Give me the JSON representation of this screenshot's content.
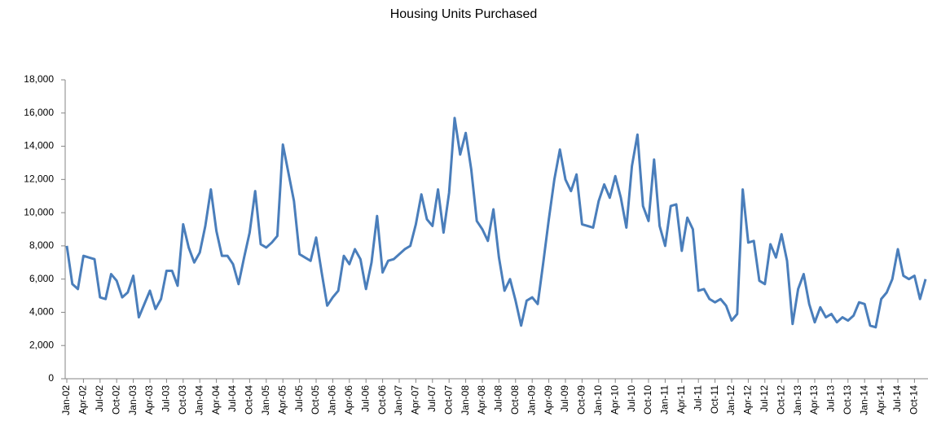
{
  "chart_data": {
    "type": "line",
    "title": "Housing Units Purchased",
    "categories": [
      "Jan-02",
      null,
      null,
      "Apr-02",
      null,
      null,
      "Jul-02",
      null,
      null,
      "Oct-02",
      null,
      null,
      "Jan-03",
      null,
      null,
      "Apr-03",
      null,
      null,
      "Jul-03",
      null,
      null,
      "Oct-03",
      null,
      null,
      "Jan-04",
      null,
      null,
      "Apr-04",
      null,
      null,
      "Jul-04",
      null,
      null,
      "Oct-04",
      null,
      null,
      "Jan-05",
      null,
      null,
      "Apr-05",
      null,
      null,
      "Jul-05",
      null,
      null,
      "Oct-05",
      null,
      null,
      "Jan-06",
      null,
      null,
      "Apr-06",
      null,
      null,
      "Jul-06",
      null,
      null,
      "Oct-06",
      null,
      null,
      "Jan-07",
      null,
      null,
      "Apr-07",
      null,
      null,
      "Jul-07",
      null,
      null,
      "Oct-07",
      null,
      null,
      "Jan-08",
      null,
      null,
      "Apr-08",
      null,
      null,
      "Jul-08",
      null,
      null,
      "Oct-08",
      null,
      null,
      "Jan-09",
      null,
      null,
      "Apr-09",
      null,
      null,
      "Jul-09",
      null,
      null,
      "Oct-09",
      null,
      null,
      "Jan-10",
      null,
      null,
      "Apr-10",
      null,
      null,
      "Jul-10",
      null,
      null,
      "Oct-10",
      null,
      null,
      "Jan-11",
      null,
      null,
      "Apr-11",
      null,
      null,
      "Jul-11",
      null,
      null,
      "Oct-11",
      null,
      null,
      "Jan-12",
      null,
      null,
      "Apr-12",
      null,
      null,
      "Jul-12",
      null,
      null,
      "Oct-12",
      null,
      null,
      "Jan-13",
      null,
      null,
      "Apr-13",
      null,
      null,
      "Jul-13",
      null,
      null,
      "Oct-13",
      null,
      null,
      "Jan-14",
      null,
      null,
      "Apr-14",
      null,
      null,
      "Jul-14",
      null,
      null,
      "Oct-14",
      null,
      null
    ],
    "values": [
      8000,
      5700,
      5400,
      7400,
      7300,
      7200,
      4900,
      4800,
      6300,
      5900,
      4900,
      5200,
      6200,
      3700,
      4500,
      5300,
      4200,
      4800,
      6500,
      6500,
      5600,
      9300,
      7900,
      7000,
      7600,
      9200,
      11400,
      8900,
      7400,
      7400,
      6900,
      5700,
      7300,
      8800,
      11300,
      8100,
      7900,
      8200,
      8600,
      14100,
      12400,
      10700,
      7500,
      7300,
      7100,
      8500,
      6400,
      4400,
      4900,
      5300,
      7400,
      6900,
      7800,
      7200,
      5400,
      7000,
      9800,
      6400,
      7100,
      7200,
      7500,
      7800,
      8000,
      9300,
      11100,
      9600,
      9200,
      11400,
      8800,
      11200,
      15700,
      13500,
      14800,
      12600,
      9500,
      9000,
      8300,
      10200,
      7300,
      5300,
      6000,
      4700,
      3200,
      4700,
      4900,
      4500,
      7000,
      9600,
      12000,
      13800,
      12000,
      11300,
      12300,
      9300,
      9200,
      9100,
      10700,
      11700,
      10900,
      12200,
      10900,
      9100,
      12800,
      14700,
      10400,
      9500,
      13200,
      9200,
      8000,
      10400,
      10500,
      7700,
      9700,
      9000,
      5300,
      5400,
      4800,
      4600,
      4800,
      4400,
      3500,
      3900,
      11400,
      8200,
      8300,
      5900,
      5700,
      8100,
      7300,
      8700,
      7100,
      3300,
      5400,
      6300,
      4500,
      3400,
      4300,
      3700,
      3900,
      3400,
      3700,
      3500,
      3800,
      4600,
      4500,
      3200,
      3100,
      4800,
      5200,
      6000,
      7800,
      6200,
      6000,
      6200,
      4800,
      6000
    ],
    "color": "#4a7ebb",
    "ylim": [
      0,
      18000
    ],
    "yticks": [
      0,
      {
        "value": 2000,
        "label": "2,000"
      },
      {
        "value": 4000,
        "label": "4,000"
      },
      {
        "value": 6000,
        "label": "6,000"
      },
      {
        "value": 8000,
        "label": "8,000"
      },
      {
        "value": 10000,
        "label": "10,000"
      },
      {
        "value": 12000,
        "label": "12,000"
      },
      {
        "value": 14000,
        "label": "14,000"
      },
      {
        "value": 16000,
        "label": "16,000"
      },
      {
        "value": 18000,
        "label": "18,000"
      }
    ],
    "grid": false
  }
}
